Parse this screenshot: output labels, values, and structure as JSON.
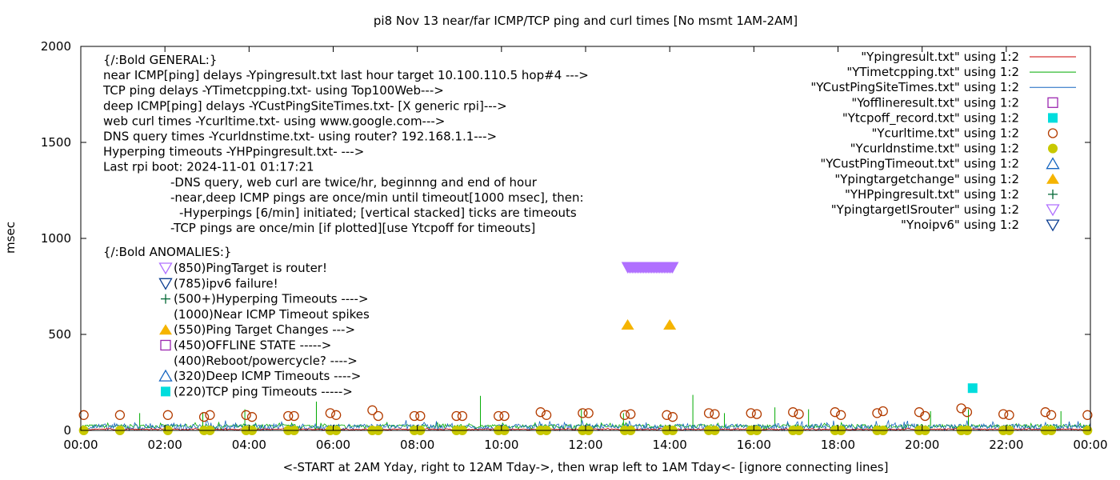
{
  "chart_data": {
    "type": "scatter",
    "title": "pi8 Nov 13  near/far ICMP/TCP ping and curl times [No msmt 1AM-2AM]",
    "xlabel": "<-START at 2AM Yday, right to 12AM Tday->, then wrap left to 1AM Tday<- [ignore connecting lines]",
    "ylabel": "msec",
    "xlim": [
      0,
      24
    ],
    "ylim": [
      0,
      2000
    ],
    "x_ticks": [
      {
        "v": 0,
        "label": "00:00"
      },
      {
        "v": 2,
        "label": "02:00"
      },
      {
        "v": 4,
        "label": "04:00"
      },
      {
        "v": 6,
        "label": "06:00"
      },
      {
        "v": 8,
        "label": "08:00"
      },
      {
        "v": 10,
        "label": "10:00"
      },
      {
        "v": 12,
        "label": "12:00"
      },
      {
        "v": 14,
        "label": "14:00"
      },
      {
        "v": 16,
        "label": "16:00"
      },
      {
        "v": 18,
        "label": "18:00"
      },
      {
        "v": 20,
        "label": "20:00"
      },
      {
        "v": 22,
        "label": "22:00"
      },
      {
        "v": 24,
        "label": "00:00"
      }
    ],
    "y_ticks": [
      {
        "v": 0,
        "label": "0"
      },
      {
        "v": 500,
        "label": "500"
      },
      {
        "v": 1000,
        "label": "1000"
      },
      {
        "v": 1500,
        "label": "1500"
      },
      {
        "v": 2000,
        "label": "2000"
      }
    ],
    "legend_position": "top-right",
    "legend": [
      {
        "label": "\"Ypingresult.txt\" using 1:2",
        "style": "line",
        "color": "#cc0000"
      },
      {
        "label": "\"YTimetcpping.txt\" using 1:2",
        "style": "line",
        "color": "#00aa00"
      },
      {
        "label": "\"YCustPingSiteTimes.txt\" using 1:2",
        "style": "line",
        "color": "#1565c0"
      },
      {
        "label": "\"Yofflineresult.txt\" using 1:2",
        "style": "open-square",
        "color": "#9c27b0"
      },
      {
        "label": "\"Ytcpoff_record.txt\" using 1:2",
        "style": "filled-square",
        "color": "#00dddd"
      },
      {
        "label": "\"Ycurltime.txt\" using 1:2",
        "style": "open-circle",
        "color": "#b33c00"
      },
      {
        "label": "\"Ycurldnstime.txt\" using 1:2",
        "style": "filled-circle",
        "color": "#c8c800"
      },
      {
        "label": "\"YCustPingTimeout.txt\" using 1:2",
        "style": "open-triangle",
        "color": "#1565c0"
      },
      {
        "label": "\"Ypingtargetchange\" using 1:2",
        "style": "filled-triangle",
        "color": "#f5b400"
      },
      {
        "label": "\"YHPpingresult.txt\" using 1:2",
        "style": "plus",
        "color": "#006633"
      },
      {
        "label": "\"YpingtargetISrouter\" using 1:2",
        "style": "open-down-triangle",
        "color": "#b070ff"
      },
      {
        "label": "\"Ynoipv6\" using 1:2",
        "style": "open-down-triangle",
        "color": "#0b3d91"
      }
    ],
    "info_lines": [
      {
        "text": "{/:Bold GENERAL:}",
        "indent": 0
      },
      {
        "text": "near ICMP[ping] delays -Ypingresult.txt last hour target 10.100.110.5 hop#4 --->",
        "indent": 0
      },
      {
        "text": "TCP ping delays -YTimetcpping.txt- using Top100Web--->",
        "indent": 0
      },
      {
        "text": "deep ICMP[ping] delays -YCustPingSiteTimes.txt- [X generic rpi]--->",
        "indent": 0
      },
      {
        "text": "web curl times -Ycurltime.txt- using www.google.com--->",
        "indent": 0
      },
      {
        "text": "DNS query times -Ycurldnstime.txt- using router? 192.168.1.1--->",
        "indent": 0
      },
      {
        "text": "Hyperping timeouts -YHPpingresult.txt- --->",
        "indent": 0
      },
      {
        "text": "Last rpi boot: 2024-11-01 01:17:21",
        "indent": 0
      },
      {
        "text": "-DNS query, web curl are twice/hr, beginnng and end of hour",
        "indent": 1
      },
      {
        "text": "-near,deep ICMP pings are once/min until timeout[1000 msec], then:",
        "indent": 1
      },
      {
        "text": "-Hyperpings [6/min] initiated; [vertical stacked] ticks are timeouts",
        "indent": 2
      },
      {
        "text": "-TCP pings are once/min [if plotted][use Ytcpoff for timeouts]",
        "indent": 1
      }
    ],
    "anomalies_title": "{/:Bold ANOMALIES:}",
    "anomaly_lines": [
      {
        "text": "(850)PingTarget is router!",
        "marker": "open-down-triangle",
        "color": "#b070ff"
      },
      {
        "text": "(785)ipv6 failure!",
        "marker": "open-down-triangle",
        "color": "#0b3d91"
      },
      {
        "text": "(500+)Hyperping Timeouts ---->",
        "marker": "plus",
        "color": "#006633"
      },
      {
        "text": "(1000)Near ICMP Timeout spikes",
        "marker": "none",
        "color": "#000000"
      },
      {
        "text": "(550)Ping Target Changes --->",
        "marker": "filled-triangle",
        "color": "#f5b400"
      },
      {
        "text": "(450)OFFLINE STATE ----->",
        "marker": "open-square",
        "color": "#9c27b0"
      },
      {
        "text": "(400)Reboot/powercycle? ---->",
        "marker": "none",
        "color": "#000000"
      },
      {
        "text": "(320)Deep ICMP Timeouts ---->",
        "marker": "open-triangle",
        "color": "#1565c0"
      },
      {
        "text": "(220)TCP ping Timeouts ----->",
        "marker": "filled-square",
        "color": "#00dddd"
      }
    ],
    "series": [
      {
        "name": "\"YTimetcpping.txt\" using 1:2",
        "kind": "noise-line",
        "color": "#00aa00",
        "baseline": 22,
        "noise": 18,
        "spikes": [
          [
            1.4,
            90
          ],
          [
            2.9,
            95
          ],
          [
            3.9,
            110
          ],
          [
            5.6,
            150
          ],
          [
            9.5,
            180
          ],
          [
            11.9,
            110
          ],
          [
            12.9,
            90
          ],
          [
            14.55,
            185
          ],
          [
            15.3,
            90
          ],
          [
            16.5,
            120
          ],
          [
            17.3,
            110
          ],
          [
            20.2,
            100
          ],
          [
            21.1,
            110
          ],
          [
            23.3,
            100
          ]
        ]
      },
      {
        "name": "\"YCustPingSiteTimes.txt\" using 1:2",
        "kind": "noise-line",
        "color": "#1565c0",
        "baseline": 18,
        "noise": 32,
        "spikes": []
      },
      {
        "name": "\"Ypingresult.txt\" using 1:2",
        "kind": "noise-line",
        "color": "#cc0000",
        "baseline": 6,
        "noise": 6,
        "spikes": []
      },
      {
        "name": "\"Ycurltime.txt\" using 1:2",
        "kind": "points",
        "marker": "open-circle",
        "color": "#b33c00",
        "points": [
          [
            0.07,
            80
          ],
          [
            0.93,
            80
          ],
          [
            2.07,
            80
          ],
          [
            2.93,
            70
          ],
          [
            3.07,
            80
          ],
          [
            3.93,
            80
          ],
          [
            4.07,
            70
          ],
          [
            4.93,
            75
          ],
          [
            5.07,
            75
          ],
          [
            5.93,
            90
          ],
          [
            6.07,
            80
          ],
          [
            6.93,
            105
          ],
          [
            7.07,
            75
          ],
          [
            7.93,
            75
          ],
          [
            8.07,
            75
          ],
          [
            8.93,
            75
          ],
          [
            9.07,
            75
          ],
          [
            9.93,
            75
          ],
          [
            10.07,
            75
          ],
          [
            10.93,
            95
          ],
          [
            11.07,
            80
          ],
          [
            11.93,
            90
          ],
          [
            12.07,
            90
          ],
          [
            12.93,
            80
          ],
          [
            13.07,
            85
          ],
          [
            13.93,
            80
          ],
          [
            14.07,
            70
          ],
          [
            14.93,
            90
          ],
          [
            15.07,
            85
          ],
          [
            15.93,
            90
          ],
          [
            16.07,
            85
          ],
          [
            16.93,
            95
          ],
          [
            17.07,
            85
          ],
          [
            17.93,
            95
          ],
          [
            18.07,
            80
          ],
          [
            18.93,
            90
          ],
          [
            19.07,
            100
          ],
          [
            19.93,
            95
          ],
          [
            20.07,
            75
          ],
          [
            20.93,
            115
          ],
          [
            21.07,
            95
          ],
          [
            21.93,
            85
          ],
          [
            22.07,
            80
          ],
          [
            22.93,
            95
          ],
          [
            23.07,
            80
          ],
          [
            23.93,
            80
          ]
        ]
      },
      {
        "name": "\"Ycurldnstime.txt\" using 1:2",
        "kind": "points",
        "marker": "filled-circle",
        "color": "#c8c800",
        "points": [
          [
            0.07,
            0
          ],
          [
            0.93,
            0
          ],
          [
            2.07,
            0
          ],
          [
            2.93,
            0
          ],
          [
            3.07,
            0
          ],
          [
            3.93,
            0
          ],
          [
            4.07,
            0
          ],
          [
            4.93,
            0
          ],
          [
            5.07,
            0
          ],
          [
            5.93,
            0
          ],
          [
            6.07,
            0
          ],
          [
            6.93,
            0
          ],
          [
            7.07,
            0
          ],
          [
            7.93,
            0
          ],
          [
            8.07,
            0
          ],
          [
            8.93,
            0
          ],
          [
            9.07,
            0
          ],
          [
            9.93,
            0
          ],
          [
            10.07,
            0
          ],
          [
            10.93,
            0
          ],
          [
            11.07,
            0
          ],
          [
            11.93,
            0
          ],
          [
            12.07,
            0
          ],
          [
            12.93,
            0
          ],
          [
            13.07,
            0
          ],
          [
            13.93,
            0
          ],
          [
            14.07,
            0
          ],
          [
            14.93,
            0
          ],
          [
            15.07,
            0
          ],
          [
            15.93,
            0
          ],
          [
            16.07,
            0
          ],
          [
            16.93,
            0
          ],
          [
            17.07,
            0
          ],
          [
            17.93,
            0
          ],
          [
            18.07,
            0
          ],
          [
            18.93,
            0
          ],
          [
            19.07,
            0
          ],
          [
            19.93,
            0
          ],
          [
            20.07,
            0
          ],
          [
            20.93,
            0
          ],
          [
            21.07,
            0
          ],
          [
            21.93,
            0
          ],
          [
            22.07,
            0
          ],
          [
            22.93,
            0
          ],
          [
            23.07,
            0
          ],
          [
            23.93,
            0
          ]
        ]
      },
      {
        "name": "\"Ypingtargetchange\" using 1:2",
        "kind": "points",
        "marker": "filled-triangle",
        "color": "#f5b400",
        "points": [
          [
            13.0,
            550
          ],
          [
            14.0,
            550
          ]
        ]
      },
      {
        "name": "\"YpingtargetISrouter\" using 1:2",
        "kind": "band",
        "marker": "open-down-triangle",
        "color": "#b070ff",
        "x_range": [
          13.0,
          14.1
        ],
        "value": 850
      },
      {
        "name": "\"Ytcpoff_record.txt\" using 1:2",
        "kind": "points",
        "marker": "filled-square",
        "color": "#00dddd",
        "points": [
          [
            21.2,
            220
          ]
        ]
      }
    ]
  }
}
